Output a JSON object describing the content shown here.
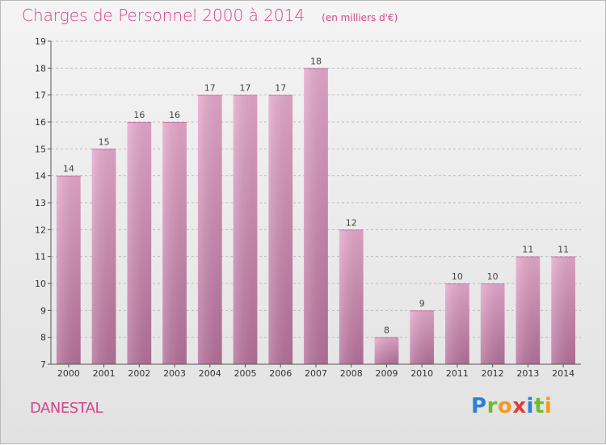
{
  "header": {
    "title": "Charges de Personnel 2000 à 2014",
    "subtitle": "(en milliers d'€)"
  },
  "footer": {
    "commune": "DANESTAL",
    "logo_letters": [
      {
        "ch": "P",
        "color": "#2f7fd6"
      },
      {
        "ch": "r",
        "color": "#6bbd2e"
      },
      {
        "ch": "o",
        "color": "#f39a1e"
      },
      {
        "ch": "x",
        "color": "#e23b3b"
      },
      {
        "ch": "i",
        "color": "#2f7fd6"
      },
      {
        "ch": "t",
        "color": "#6bbd2e"
      },
      {
        "ch": "i",
        "color": "#f39a1e"
      }
    ]
  },
  "colors": {
    "bar_top": "#e6a9cc",
    "bar_bottom": "#b5719a",
    "title": "#d4468a",
    "grid": "#bdbdbd"
  },
  "chart_data": {
    "type": "bar",
    "title": "Charges de Personnel 2000 à 2014",
    "subtitle": "(en milliers d'€)",
    "categories": [
      "2000",
      "2001",
      "2002",
      "2003",
      "2004",
      "2005",
      "2006",
      "2007",
      "2008",
      "2009",
      "2010",
      "2011",
      "2012",
      "2013",
      "2014"
    ],
    "values": [
      14,
      15,
      16,
      16,
      17,
      17,
      17,
      18,
      12,
      8,
      9,
      10,
      10,
      11,
      11
    ],
    "ylim": [
      7,
      19
    ],
    "yticks": [
      7,
      8,
      9,
      10,
      11,
      12,
      13,
      14,
      15,
      16,
      17,
      18,
      19
    ],
    "grid": true,
    "xlabel": "",
    "ylabel": ""
  }
}
